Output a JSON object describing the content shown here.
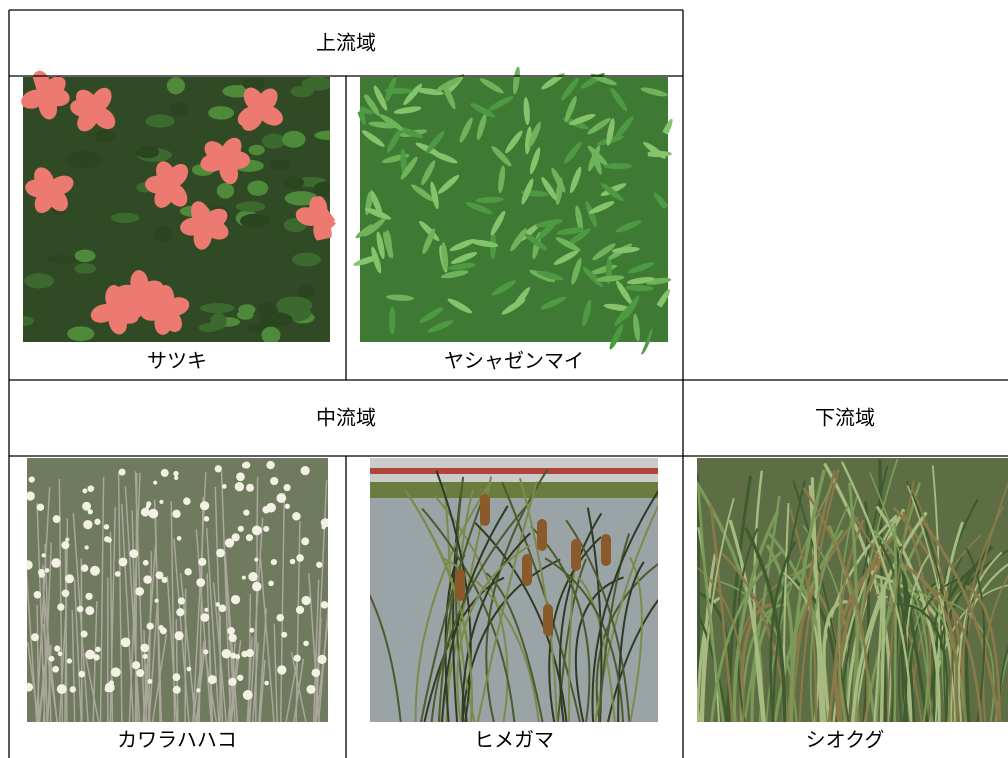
{
  "sections": [
    {
      "title": "上流域",
      "plants": [
        "サツキ",
        "ヤシャゼンマイ"
      ]
    },
    {
      "title": "中流域",
      "plants": [
        "カワラハハコ",
        "ヒメガマ"
      ]
    },
    {
      "title": "下流域",
      "plants": [
        "シオクグ"
      ]
    }
  ]
}
